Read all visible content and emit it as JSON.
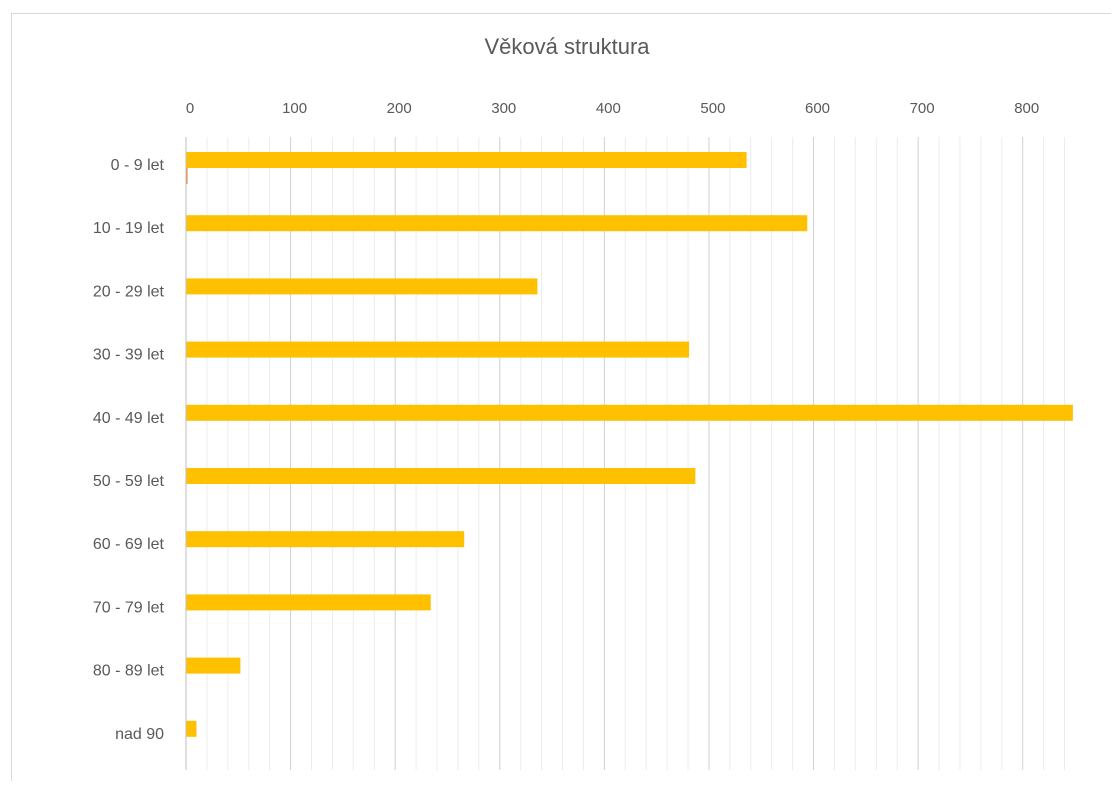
{
  "chart_data": {
    "type": "bar",
    "orientation": "horizontal",
    "title": "Věková struktura",
    "xlabel": "",
    "ylabel": "",
    "categories": [
      "0 - 9 let",
      "10 - 19 let",
      "20 - 29 let",
      "30 - 39 let",
      "40 - 49 let",
      "50 - 59 let",
      "60 - 69 let",
      "70 - 79 let",
      "80 - 89 let",
      "nad 90"
    ],
    "series": [
      {
        "values": [
          536,
          594,
          336,
          481,
          848,
          487,
          266,
          234,
          52,
          10
        ],
        "color": "#FFC000"
      },
      {
        "values": [
          1,
          0,
          0,
          0,
          0,
          0,
          0,
          0,
          0,
          0
        ],
        "color": "#ED7D31"
      }
    ],
    "xlim": [
      0,
      850
    ],
    "x_ticks": [
      "0",
      "100",
      "200",
      "300",
      "400",
      "500",
      "600",
      "700",
      "800"
    ],
    "x_tick_values": [
      0,
      100,
      200,
      300,
      400,
      500,
      600,
      700,
      800
    ],
    "x_axis_position": "top",
    "grid": true,
    "legend": "none"
  }
}
